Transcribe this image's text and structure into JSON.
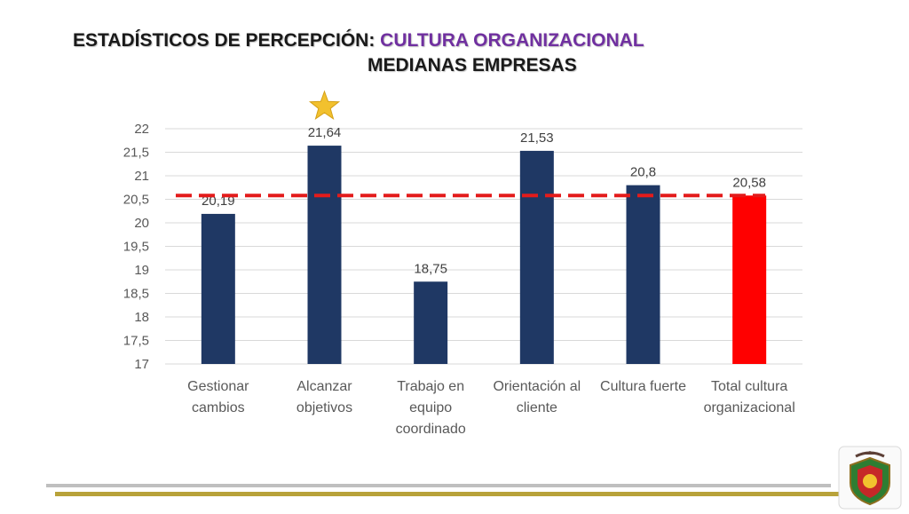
{
  "title": {
    "prefix": "ESTADÍSTICOS DE PERCEPCIÓN: ",
    "accent": "CULTURA ORGANIZACIONAL",
    "subtitle": "MEDIANAS EMPRESAS"
  },
  "colors": {
    "bar": "#1f3864",
    "highlight_bar": "#ff0000",
    "reference_line": "#e31b1b",
    "star": "#f2c12e",
    "title_accent": "#7030a0"
  },
  "chart_data": {
    "type": "bar",
    "categories": [
      [
        "Gestionar",
        "cambios"
      ],
      [
        "Alcanzar",
        "objetivos"
      ],
      [
        "Trabajo en",
        "equipo",
        "coordinado"
      ],
      [
        "Orientación al",
        "cliente"
      ],
      [
        "Cultura fuerte"
      ],
      [
        "Total cultura",
        "organizacional"
      ]
    ],
    "values": [
      20.19,
      21.64,
      18.75,
      21.53,
      20.8,
      20.58
    ],
    "data_labels": [
      "20,19",
      "21,64",
      "18,75",
      "21,53",
      "20,8",
      "20,58"
    ],
    "highlight_index": 5,
    "star_index": 1,
    "reference_line_value": 20.58,
    "ylim": [
      17,
      22
    ],
    "yticks": [
      "17",
      "17,5",
      "18",
      "18,5",
      "19",
      "19,5",
      "20",
      "20,5",
      "21",
      "21,5",
      "22"
    ],
    "grid": true,
    "legend": "none"
  },
  "logo": {
    "icon": "university-seal-icon"
  }
}
